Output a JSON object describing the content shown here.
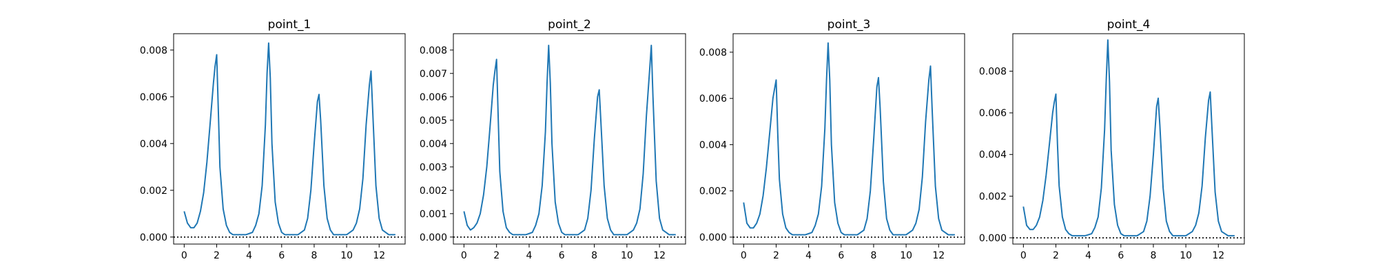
{
  "chart_data": [
    {
      "type": "line",
      "title": "point_1",
      "xlim": [
        -0.65,
        13.6
      ],
      "ylim": [
        -0.0003,
        0.0087
      ],
      "xticks": [
        0,
        2,
        4,
        6,
        8,
        10,
        12
      ],
      "yticks": [
        0.0,
        0.002,
        0.004,
        0.006,
        0.008
      ],
      "yticks_labels": [
        "0.000",
        "0.002",
        "0.004",
        "0.006",
        "0.008"
      ],
      "hline": 0,
      "series": [
        {
          "x": [
            0,
            0.2,
            0.4,
            0.6,
            0.8,
            1.0,
            1.2,
            1.4,
            1.6,
            1.8,
            1.9,
            2.0,
            2.1,
            2.2,
            2.4,
            2.6,
            2.8,
            3.0,
            3.4,
            3.8,
            4.2,
            4.4,
            4.6,
            4.8,
            5.0,
            5.1,
            5.2,
            5.3,
            5.4,
            5.6,
            5.8,
            6.0,
            6.2,
            6.6,
            7.0,
            7.4,
            7.6,
            7.8,
            8.0,
            8.2,
            8.3,
            8.4,
            8.6,
            8.8,
            9.0,
            9.2,
            9.6,
            10.0,
            10.4,
            10.6,
            10.8,
            11.0,
            11.2,
            11.4,
            11.5,
            11.6,
            11.8,
            12.0,
            12.2,
            12.6,
            13.0
          ],
          "y": [
            0.0011,
            0.0006,
            0.0004,
            0.0004,
            0.0006,
            0.0011,
            0.0019,
            0.0032,
            0.0049,
            0.0066,
            0.0073,
            0.0078,
            0.0055,
            0.003,
            0.0012,
            0.0005,
            0.0002,
            0.0001,
            0.0001,
            0.0001,
            0.0002,
            0.0005,
            0.001,
            0.0022,
            0.0048,
            0.007,
            0.0083,
            0.0068,
            0.004,
            0.0015,
            0.0006,
            0.0002,
            0.0001,
            0.0001,
            0.0001,
            0.0003,
            0.0008,
            0.002,
            0.004,
            0.0058,
            0.0061,
            0.005,
            0.0022,
            0.0008,
            0.0003,
            0.0001,
            0.0001,
            0.0001,
            0.0003,
            0.0006,
            0.0012,
            0.0025,
            0.0048,
            0.0065,
            0.0071,
            0.0055,
            0.0022,
            0.0008,
            0.0003,
            0.0001,
            0.0001
          ]
        }
      ]
    },
    {
      "type": "line",
      "title": "point_2",
      "xlim": [
        -0.65,
        13.6
      ],
      "ylim": [
        -0.0003,
        0.0087
      ],
      "xticks": [
        0,
        2,
        4,
        6,
        8,
        10,
        12
      ],
      "yticks": [
        0.0,
        0.001,
        0.002,
        0.003,
        0.004,
        0.005,
        0.006,
        0.007,
        0.008
      ],
      "yticks_labels": [
        "0.000",
        "0.001",
        "0.002",
        "0.003",
        "0.004",
        "0.005",
        "0.006",
        "0.007",
        "0.008"
      ],
      "hline": 0,
      "series": [
        {
          "x": [
            0,
            0.2,
            0.4,
            0.6,
            0.8,
            1.0,
            1.2,
            1.4,
            1.6,
            1.8,
            1.9,
            2.0,
            2.1,
            2.2,
            2.4,
            2.6,
            2.8,
            3.0,
            3.4,
            3.8,
            4.2,
            4.4,
            4.6,
            4.8,
            5.0,
            5.1,
            5.2,
            5.3,
            5.4,
            5.6,
            5.8,
            6.0,
            6.2,
            6.6,
            7.0,
            7.4,
            7.6,
            7.8,
            8.0,
            8.2,
            8.3,
            8.4,
            8.6,
            8.8,
            9.0,
            9.2,
            9.6,
            10.0,
            10.4,
            10.6,
            10.8,
            11.0,
            11.2,
            11.4,
            11.5,
            11.6,
            11.8,
            12.0,
            12.2,
            12.6,
            13.0
          ],
          "y": [
            0.0011,
            0.0005,
            0.0003,
            0.0004,
            0.0006,
            0.001,
            0.0018,
            0.003,
            0.0047,
            0.0065,
            0.0071,
            0.0076,
            0.0052,
            0.0028,
            0.0011,
            0.0004,
            0.0002,
            0.0001,
            0.0001,
            0.0001,
            0.0002,
            0.0005,
            0.001,
            0.0022,
            0.0045,
            0.0066,
            0.0082,
            0.0066,
            0.004,
            0.0015,
            0.0006,
            0.0002,
            0.0001,
            0.0001,
            0.0001,
            0.0003,
            0.0008,
            0.002,
            0.0042,
            0.006,
            0.0063,
            0.005,
            0.0022,
            0.0008,
            0.0003,
            0.0001,
            0.0001,
            0.0001,
            0.0003,
            0.0006,
            0.0012,
            0.0027,
            0.0052,
            0.0072,
            0.0082,
            0.006,
            0.0024,
            0.0008,
            0.0003,
            0.0001,
            0.0001
          ]
        }
      ]
    },
    {
      "type": "line",
      "title": "point_3",
      "xlim": [
        -0.65,
        13.6
      ],
      "ylim": [
        -0.0003,
        0.0088
      ],
      "xticks": [
        0,
        2,
        4,
        6,
        8,
        10,
        12
      ],
      "yticks": [
        0.0,
        0.002,
        0.004,
        0.006,
        0.008
      ],
      "yticks_labels": [
        "0.000",
        "0.002",
        "0.004",
        "0.006",
        "0.008"
      ],
      "hline": 0,
      "series": [
        {
          "x": [
            0,
            0.2,
            0.4,
            0.6,
            0.8,
            1.0,
            1.2,
            1.4,
            1.6,
            1.8,
            1.9,
            2.0,
            2.1,
            2.2,
            2.4,
            2.6,
            2.8,
            3.0,
            3.4,
            3.8,
            4.2,
            4.4,
            4.6,
            4.8,
            5.0,
            5.1,
            5.2,
            5.3,
            5.4,
            5.6,
            5.8,
            6.0,
            6.2,
            6.6,
            7.0,
            7.4,
            7.6,
            7.8,
            8.0,
            8.2,
            8.3,
            8.4,
            8.6,
            8.8,
            9.0,
            9.2,
            9.6,
            10.0,
            10.4,
            10.6,
            10.8,
            11.0,
            11.2,
            11.4,
            11.5,
            11.6,
            11.8,
            12.0,
            12.2,
            12.6,
            13.0
          ],
          "y": [
            0.0015,
            0.0006,
            0.0004,
            0.0004,
            0.0006,
            0.001,
            0.0018,
            0.003,
            0.0045,
            0.006,
            0.0064,
            0.0068,
            0.0045,
            0.0025,
            0.001,
            0.0004,
            0.0002,
            0.0001,
            0.0001,
            0.0001,
            0.0002,
            0.0005,
            0.001,
            0.0022,
            0.0047,
            0.0068,
            0.0084,
            0.0068,
            0.004,
            0.0015,
            0.0006,
            0.0002,
            0.0001,
            0.0001,
            0.0001,
            0.0003,
            0.0008,
            0.002,
            0.0042,
            0.0065,
            0.0069,
            0.0056,
            0.0024,
            0.0008,
            0.0003,
            0.0001,
            0.0001,
            0.0001,
            0.0003,
            0.0006,
            0.0012,
            0.0026,
            0.005,
            0.0068,
            0.0074,
            0.0056,
            0.0022,
            0.0008,
            0.0003,
            0.0001,
            0.0001
          ]
        }
      ]
    },
    {
      "type": "line",
      "title": "point_4",
      "xlim": [
        -0.65,
        13.6
      ],
      "ylim": [
        -0.0003,
        0.0098
      ],
      "xticks": [
        0,
        2,
        4,
        6,
        8,
        10,
        12
      ],
      "yticks": [
        0.0,
        0.002,
        0.004,
        0.006,
        0.008
      ],
      "yticks_labels": [
        "0.000",
        "0.002",
        "0.004",
        "0.006",
        "0.008"
      ],
      "hline": 0,
      "series": [
        {
          "x": [
            0,
            0.2,
            0.4,
            0.6,
            0.8,
            1.0,
            1.2,
            1.4,
            1.6,
            1.8,
            1.9,
            2.0,
            2.1,
            2.2,
            2.4,
            2.6,
            2.8,
            3.0,
            3.4,
            3.8,
            4.2,
            4.4,
            4.6,
            4.8,
            5.0,
            5.1,
            5.2,
            5.3,
            5.4,
            5.6,
            5.8,
            6.0,
            6.2,
            6.6,
            7.0,
            7.4,
            7.6,
            7.8,
            8.0,
            8.2,
            8.3,
            8.4,
            8.6,
            8.8,
            9.0,
            9.2,
            9.6,
            10.0,
            10.4,
            10.6,
            10.8,
            11.0,
            11.2,
            11.4,
            11.5,
            11.6,
            11.8,
            12.0,
            12.2,
            12.6,
            13.0
          ],
          "y": [
            0.0015,
            0.0006,
            0.0004,
            0.0004,
            0.0006,
            0.001,
            0.0018,
            0.003,
            0.0045,
            0.006,
            0.0065,
            0.0069,
            0.0045,
            0.0025,
            0.001,
            0.0004,
            0.0002,
            0.0001,
            0.0001,
            0.0001,
            0.0002,
            0.0005,
            0.001,
            0.0024,
            0.0052,
            0.0076,
            0.0095,
            0.0075,
            0.0042,
            0.0016,
            0.0006,
            0.0002,
            0.0001,
            0.0001,
            0.0001,
            0.0003,
            0.0008,
            0.002,
            0.004,
            0.0063,
            0.0067,
            0.0054,
            0.0024,
            0.0008,
            0.0003,
            0.0001,
            0.0001,
            0.0001,
            0.0003,
            0.0006,
            0.0012,
            0.0025,
            0.0048,
            0.0066,
            0.007,
            0.0054,
            0.0022,
            0.0008,
            0.0003,
            0.0001,
            0.0001
          ]
        }
      ]
    }
  ],
  "style": {
    "line_color": "#1f77b4",
    "axis_color": "#000000",
    "background": "#ffffff"
  }
}
